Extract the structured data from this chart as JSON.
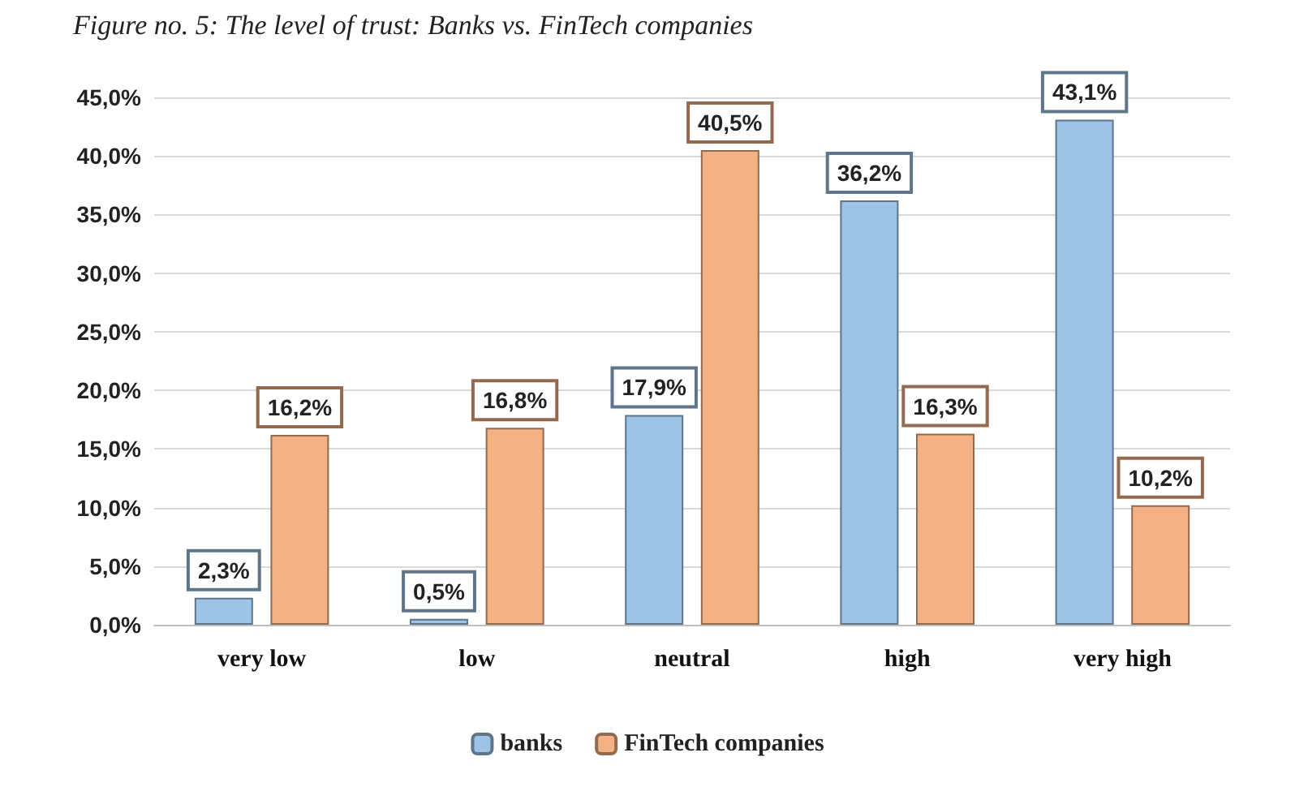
{
  "chart_data": {
    "type": "bar",
    "title": "Figure no. 5: The level of trust: Banks vs. FinTech companies",
    "categories": [
      "very low",
      "low",
      "neutral",
      "high",
      "very high"
    ],
    "series": [
      {
        "name": "banks",
        "color": "#9dc3e6",
        "values": [
          2.3,
          0.5,
          17.9,
          36.2,
          43.1
        ],
        "value_labels": [
          "2,3%",
          "0,5%",
          "17,9%",
          "36,2%",
          "43,1%"
        ]
      },
      {
        "name": "FinTech companies",
        "color": "#f4b183",
        "values": [
          16.2,
          16.8,
          40.5,
          16.3,
          10.2
        ],
        "value_labels": [
          "16,2%",
          "16,8%",
          "40,5%",
          "16,3%",
          "10,2%"
        ]
      }
    ],
    "ylim": [
      0,
      45
    ],
    "yticks": [
      {
        "value": 0,
        "label": "0,0%"
      },
      {
        "value": 5,
        "label": "5,0%"
      },
      {
        "value": 10,
        "label": "10,0%"
      },
      {
        "value": 15,
        "label": "15,0%"
      },
      {
        "value": 20,
        "label": "20,0%"
      },
      {
        "value": 25,
        "label": "25,0%"
      },
      {
        "value": 30,
        "label": "30,0%"
      },
      {
        "value": 35,
        "label": "35,0%"
      },
      {
        "value": 40,
        "label": "40,0%"
      },
      {
        "value": 45,
        "label": "45,0%"
      }
    ],
    "grid": "y",
    "legend": "bottom"
  }
}
